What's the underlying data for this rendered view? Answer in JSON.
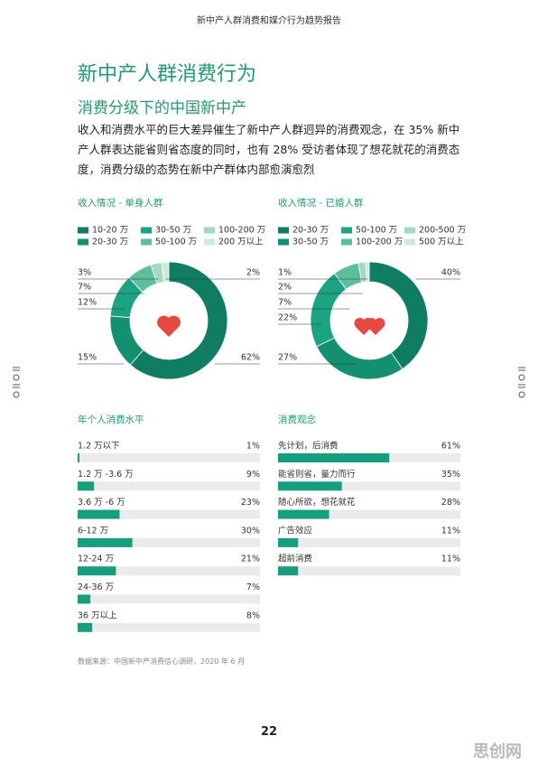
{
  "header": "新中产人群消费和媒介行为趋势报告",
  "title": "新中产人群消费行为",
  "subtitle": "消费分级下的中国新中产",
  "paragraph": "收入和消费水平的巨大差异催生了新中产人群迥异的消费观念，在 35% 新中产人群表达能省则省态度的同时，也有 28% 受访者体现了想花就花的消费态度，消费分级的态势在新中产群体内部愈演愈烈",
  "source": "数据来源：中国新中产消费信心调研，2020 年 6 月",
  "page_number": "22",
  "watermark": "思创网",
  "chart_data": [
    {
      "type": "pie",
      "title": "收入情况 - 单身人群",
      "categories": [
        "10-20 万",
        "20-30 万",
        "30-50 万",
        "50-100 万",
        "100-200 万",
        "200 万以上"
      ],
      "values": [
        62,
        15,
        12,
        7,
        3,
        2
      ],
      "value_labels": [
        "62%",
        "15%",
        "12%",
        "7%",
        "3%",
        "2%"
      ],
      "colors": [
        "#0e7d62",
        "#12906f",
        "#1aa482",
        "#5cbf9b",
        "#a3d8c2",
        "#cdeadd"
      ]
    },
    {
      "type": "pie",
      "title": "收入情况 - 已婚人群",
      "categories": [
        "20-30 万",
        "30-50 万",
        "50-100 万",
        "100-200 万",
        "200-500 万",
        "500 万以上"
      ],
      "values": [
        40,
        27,
        22,
        7,
        2,
        1
      ],
      "value_labels": [
        "40%",
        "27%",
        "22%",
        "7%",
        "2%",
        "1%"
      ],
      "colors": [
        "#0e7d62",
        "#12906f",
        "#1aa482",
        "#5cbf9b",
        "#a3d8c2",
        "#cdeadd"
      ]
    },
    {
      "type": "bar",
      "orientation": "horizontal",
      "title": "年个人消费水平",
      "categories": [
        "1.2 万以下",
        "1.2 万 -3.6 万",
        "3.6 万 -6 万",
        "6-12 万",
        "12-24 万",
        "24-36 万",
        "36 万以上"
      ],
      "values": [
        1,
        9,
        23,
        30,
        21,
        7,
        8
      ],
      "value_labels": [
        "1%",
        "9%",
        "23%",
        "30%",
        "21%",
        "7%",
        "8%"
      ],
      "xlim": [
        0,
        100
      ],
      "color": "#14a07c",
      "track_color": "#ebebeb"
    },
    {
      "type": "bar",
      "orientation": "horizontal",
      "title": "消费观念",
      "categories": [
        "先计划，后消费",
        "能省则省，量力而行",
        "随心所欲，想花就花",
        "广告效应",
        "超前消费"
      ],
      "values": [
        61,
        35,
        28,
        11,
        11
      ],
      "value_labels": [
        "61%",
        "35%",
        "28%",
        "11%",
        "11%"
      ],
      "xlim": [
        0,
        100
      ],
      "color": "#14a07c",
      "track_color": "#ebebeb"
    }
  ]
}
